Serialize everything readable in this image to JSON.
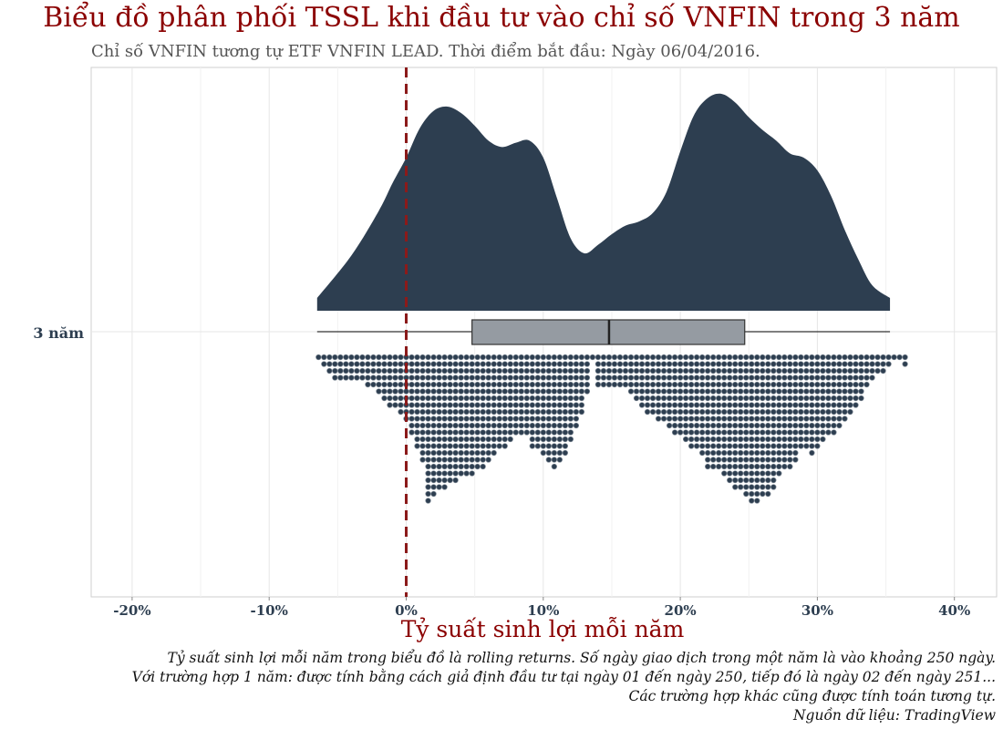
{
  "chart_data": {
    "type": "raincloud",
    "title": "Biểu đồ phân phối TSSL khi đầu tư vào chỉ số VNFIN trong 3 năm",
    "subtitle": "Chỉ số VNFIN tương tự ETF VNFIN LEAD. Thời điểm bắt đầu: Ngày 06/04/2016.",
    "xlabel": "Tỷ suất sinh lợi mỗi năm",
    "xlim": [
      -23,
      43
    ],
    "x_ticks": [
      -20,
      -10,
      0,
      10,
      20,
      30,
      40
    ],
    "x_tick_labels": [
      "-20%",
      "-10%",
      "0%",
      "10%",
      "20%",
      "30%",
      "40%"
    ],
    "y_category": "3 năm",
    "reference_line": 0,
    "boxplot": {
      "min": -6.5,
      "q1": 4.8,
      "median": 14.8,
      "q3": 24.7,
      "max": 35.3
    },
    "density": {
      "x": [
        -6.5,
        -4,
        -2,
        -1,
        0,
        1,
        2,
        3,
        4,
        5,
        6,
        7,
        8,
        9,
        10,
        11,
        12,
        13,
        14,
        15,
        16,
        17,
        18,
        19,
        20,
        21,
        22,
        23,
        24,
        25,
        26,
        27,
        28,
        29,
        30,
        31,
        32,
        33,
        34,
        35.3
      ],
      "density": [
        0.06,
        0.26,
        0.47,
        0.6,
        0.72,
        0.86,
        0.94,
        0.96,
        0.93,
        0.87,
        0.8,
        0.77,
        0.79,
        0.8,
        0.72,
        0.53,
        0.34,
        0.27,
        0.31,
        0.36,
        0.4,
        0.42,
        0.46,
        0.56,
        0.75,
        0.92,
        1.0,
        1.02,
        0.98,
        0.91,
        0.85,
        0.8,
        0.74,
        0.72,
        0.66,
        0.54,
        0.38,
        0.24,
        0.12,
        0.06
      ]
    },
    "dot_histogram": {
      "bin_width": 0.4,
      "start": -6.4,
      "counts": [
        1,
        2,
        3,
        4,
        4,
        4,
        4,
        4,
        4,
        5,
        5,
        6,
        7,
        8,
        8,
        9,
        10,
        12,
        14,
        16,
        22,
        21,
        20,
        20,
        19,
        19,
        18,
        18,
        18,
        17,
        17,
        16,
        15,
        14,
        14,
        13,
        12,
        12,
        12,
        14,
        14,
        15,
        16,
        17,
        16,
        15,
        13,
        11,
        9,
        6,
        1,
        5,
        5,
        5,
        5,
        5,
        5,
        6,
        7,
        8,
        9,
        9,
        10,
        10,
        11,
        12,
        12,
        13,
        14,
        14,
        15,
        17,
        17,
        17,
        18,
        19,
        20,
        20,
        21,
        22,
        22,
        21,
        21,
        20,
        18,
        17,
        17,
        16,
        14,
        14,
        15,
        14,
        13,
        12,
        12,
        11,
        10,
        9,
        8,
        7,
        5,
        4,
        3,
        3,
        2,
        1,
        1,
        2
      ],
      "color": "#2d3e50"
    },
    "colors": {
      "density": "#2d3e50",
      "box": "#959ba2",
      "reference": "#8b1a1a",
      "axis_text": "#2d3e50",
      "title": "#8b0000"
    }
  },
  "caption": [
    "Tỷ suất sinh lợi mỗi năm trong biểu đồ là rolling returns. Số ngày giao dịch trong một năm là vào khoảng 250 ngày.",
    "Với trường hợp 1 năm: được tính bằng cách giả định đầu tư tại ngày 01 đến ngày 250, tiếp đó là ngày 02 đến ngày 251...",
    "Các trường hợp khác cũng được tính toán tương tự.",
    "Nguồn dữ liệu: TradingView"
  ]
}
